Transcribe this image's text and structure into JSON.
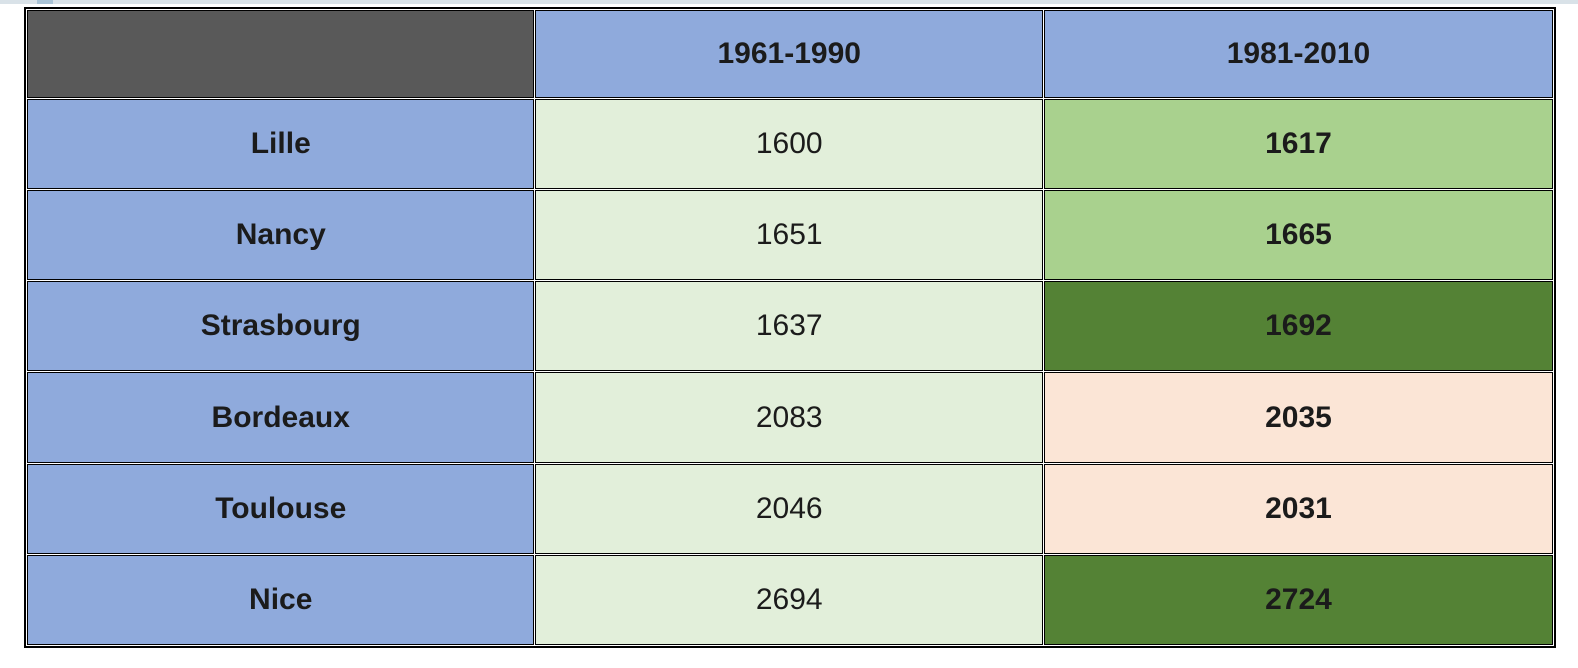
{
  "page": {
    "strip_color": "#d9e2e8",
    "strip_accent": "#a9c3d6"
  },
  "chart_data": {
    "type": "table",
    "title": "",
    "categories": [
      "Lille",
      "Nancy",
      "Strasbourg",
      "Bordeaux",
      "Toulouse",
      "Nice"
    ],
    "series": [
      {
        "name": "1961-1990",
        "values": [
          1600,
          1651,
          1637,
          2083,
          2046,
          2694
        ]
      },
      {
        "name": "1981-2010",
        "values": [
          1617,
          1665,
          1692,
          2035,
          2031,
          2724
        ]
      }
    ],
    "legend_position": "none",
    "grid": "table-borders"
  },
  "table": {
    "header": {
      "corner": "",
      "col1": "1961-1990",
      "col2": "1981-2010"
    },
    "rows": [
      {
        "city": "Lille",
        "v1": "1600",
        "v2": "1617",
        "highlight": "medium-green"
      },
      {
        "city": "Nancy",
        "v1": "1651",
        "v2": "1665",
        "highlight": "medium-green"
      },
      {
        "city": "Strasbourg",
        "v1": "1637",
        "v2": "1692",
        "highlight": "dark-green"
      },
      {
        "city": "Bordeaux",
        "v1": "2083",
        "v2": "2035",
        "highlight": "pink"
      },
      {
        "city": "Toulouse",
        "v1": "2046",
        "v2": "2031",
        "highlight": "pink"
      },
      {
        "city": "Nice",
        "v1": "2694",
        "v2": "2724",
        "highlight": "dark-green"
      }
    ],
    "colors": {
      "header_blue": "#8FAADC",
      "corner_gray": "#595959",
      "light_green": "#E2EFDA",
      "medium_green": "#A9D18E",
      "dark_green": "#548235",
      "pink": "#FBE5D6",
      "border_black": "#000000"
    }
  }
}
